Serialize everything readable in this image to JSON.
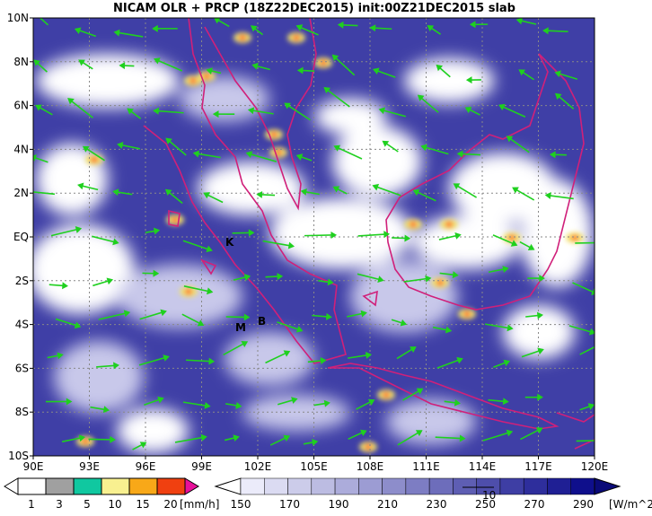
{
  "map": {
    "title": "NICAM OLR + PRCP (18Z22DEC2015) init:00Z21DEC2015 slab",
    "lat_labels": [
      "10N",
      "8N",
      "6N",
      "4N",
      "2N",
      "EQ",
      "2S",
      "4S",
      "6S",
      "8S",
      "10S"
    ],
    "lon_labels": [
      "90E",
      "93E",
      "96E",
      "99E",
      "102E",
      "105E",
      "108E",
      "111E",
      "114E",
      "117E",
      "120E"
    ],
    "places": [
      "K",
      "M",
      "B"
    ],
    "precip_legend": {
      "labels": [
        1,
        3,
        5,
        10,
        15,
        20
      ],
      "unit": "[mm/h]"
    },
    "olr_legend": {
      "labels": [
        150,
        170,
        190,
        210,
        230,
        250,
        270,
        290
      ],
      "unit": "[W/m^2]",
      "vector_scale_label": "10"
    }
  }
}
